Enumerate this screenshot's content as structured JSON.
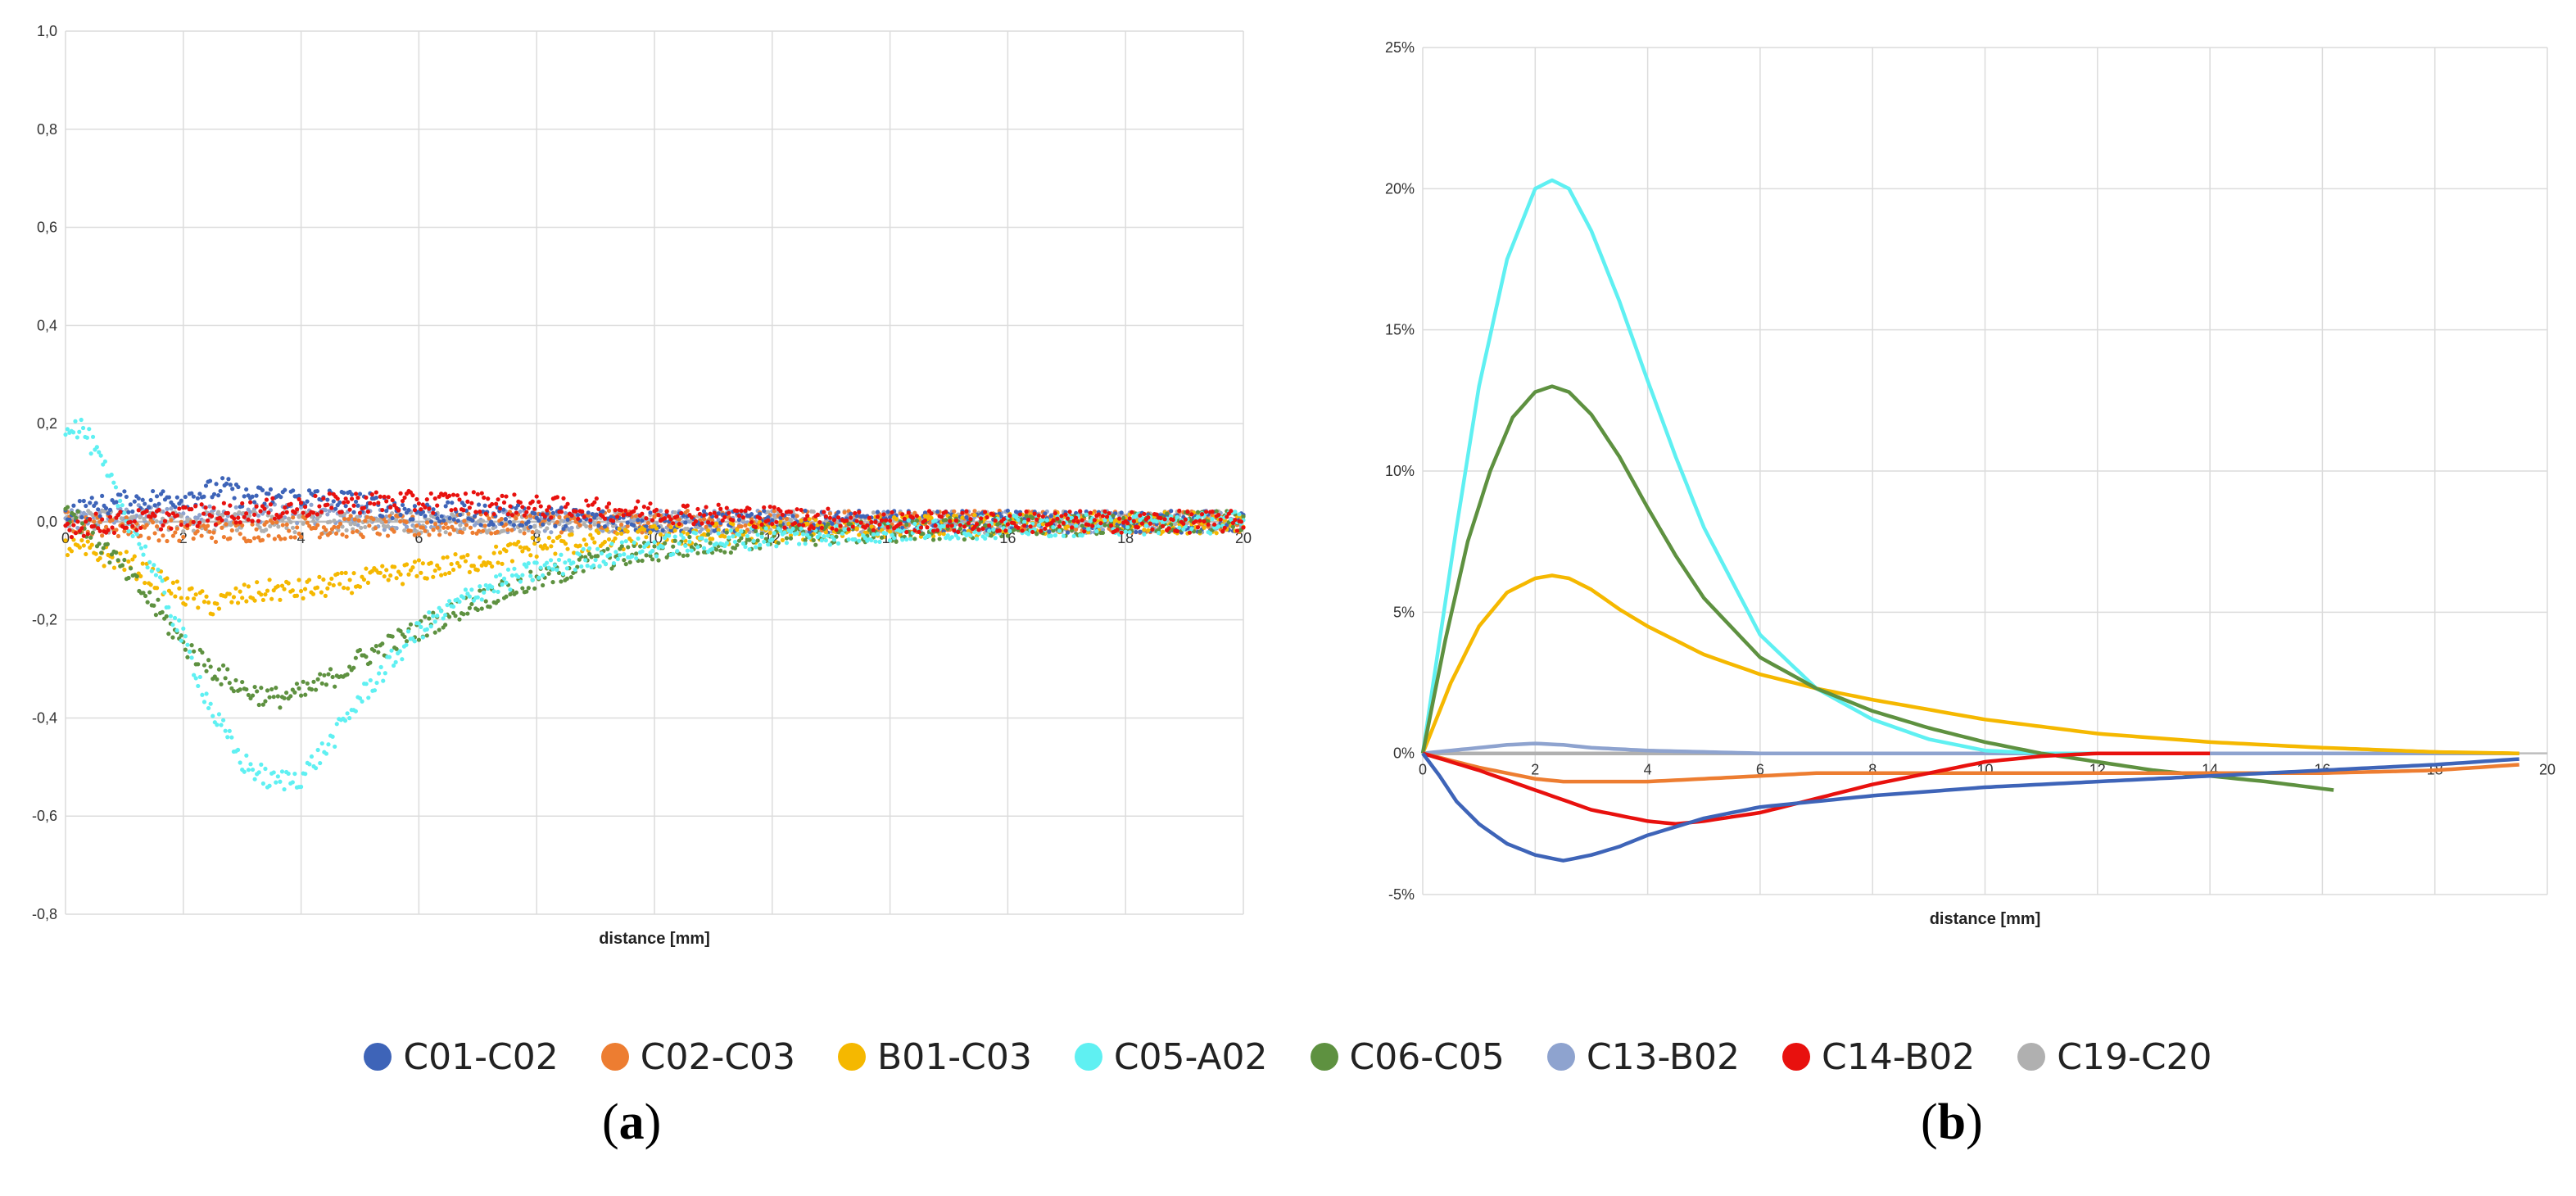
{
  "legend": [
    {
      "name": "C01-C02",
      "color": "#3e64b8"
    },
    {
      "name": "C02-C03",
      "color": "#ed7d31"
    },
    {
      "name": "B01-C03",
      "color": "#f5b800"
    },
    {
      "name": "C05-A02",
      "color": "#5ff0f2"
    },
    {
      "name": "C06-C05",
      "color": "#5e9140"
    },
    {
      "name": "C13-B02",
      "color": "#8ea3cf"
    },
    {
      "name": "C14-B02",
      "color": "#e8110e"
    },
    {
      "name": "C19-C20",
      "color": "#b0b0b0"
    }
  ],
  "panels": {
    "a": {
      "open": "(",
      "letter": "a",
      "close": ")"
    },
    "b": {
      "open": "(",
      "letter": "b",
      "close": ")"
    }
  },
  "chart_data": [
    {
      "id": "a",
      "type": "scatter",
      "xlabel": "distance [mm]",
      "ylabel": "",
      "xlim": [
        0,
        20
      ],
      "ylim": [
        -0.8,
        1.0
      ],
      "x_ticks": [
        0,
        2,
        4,
        6,
        8,
        10,
        12,
        14,
        16,
        18,
        20
      ],
      "x_tick_labels": [
        "0",
        "2",
        "4",
        "6",
        "8",
        "10",
        "12",
        "14",
        "16",
        "18",
        "20"
      ],
      "y_ticks": [
        1.0,
        0.8,
        0.6,
        0.4,
        0.2,
        0.0,
        -0.2,
        -0.4,
        -0.6,
        -0.8
      ],
      "y_tick_labels": [
        "1,0",
        "0,8",
        "0,6",
        "0,4",
        "0,2",
        "0,0",
        "-0,2",
        "-0,4",
        "-0,6",
        "-0,8"
      ],
      "grid": true,
      "series": [
        {
          "name": "C13-B02",
          "x": [
            0,
            1,
            2,
            3,
            4,
            5,
            6,
            8,
            10,
            14,
            20
          ],
          "y": [
            0.0,
            0.01,
            0.02,
            0.01,
            0.02,
            0.01,
            0.0,
            0.0,
            0.0,
            0.0,
            0.0
          ]
        },
        {
          "name": "C19-C20",
          "x": [
            0,
            2,
            4,
            6,
            8,
            10,
            14,
            20
          ],
          "y": [
            0.0,
            0.0,
            0.0,
            0.0,
            0.0,
            0.0,
            0.0,
            0.0
          ]
        },
        {
          "name": "C02-C03",
          "x": [
            0,
            1,
            2,
            3,
            4,
            6,
            8,
            10,
            14,
            20
          ],
          "y": [
            0.0,
            -0.01,
            -0.02,
            -0.02,
            -0.01,
            -0.01,
            0.0,
            0.0,
            0.0,
            0.0
          ]
        },
        {
          "name": "C01-C02",
          "x": [
            0,
            1,
            2,
            2.7,
            3,
            4,
            5,
            6,
            8,
            10,
            14,
            20
          ],
          "y": [
            0.02,
            0.04,
            0.05,
            0.07,
            0.05,
            0.05,
            0.04,
            0.02,
            0.01,
            0.0,
            0.0,
            0.0
          ]
        },
        {
          "name": "B01-C03",
          "x": [
            0,
            1,
            2,
            2.5,
            3,
            3.5,
            4,
            5,
            6,
            7,
            8,
            10,
            12,
            14,
            20
          ],
          "y": [
            -0.05,
            -0.08,
            -0.15,
            -0.17,
            -0.15,
            -0.14,
            -0.14,
            -0.12,
            -0.1,
            -0.08,
            -0.05,
            -0.03,
            -0.02,
            -0.01,
            0.0
          ]
        },
        {
          "name": "C06-C05",
          "x": [
            0,
            0.5,
            1,
            1.5,
            2,
            2.5,
            3,
            3.5,
            4,
            4.5,
            5,
            6,
            7,
            8,
            9,
            10,
            12,
            14,
            16,
            20
          ],
          "y": [
            0.03,
            -0.03,
            -0.1,
            -0.17,
            -0.25,
            -0.3,
            -0.34,
            -0.36,
            -0.35,
            -0.32,
            -0.28,
            -0.22,
            -0.16,
            -0.12,
            -0.08,
            -0.06,
            -0.03,
            -0.02,
            -0.01,
            0.0
          ]
        },
        {
          "name": "C05-A02",
          "x": [
            0,
            0.3,
            0.6,
            1,
            1.5,
            2,
            2.5,
            3,
            3.5,
            4,
            4.5,
            5,
            5.5,
            6,
            7,
            8,
            9,
            10,
            12,
            14,
            16,
            20
          ],
          "y": [
            0.2,
            0.19,
            0.12,
            0.02,
            -0.1,
            -0.24,
            -0.39,
            -0.49,
            -0.53,
            -0.52,
            -0.45,
            -0.36,
            -0.29,
            -0.22,
            -0.14,
            -0.1,
            -0.07,
            -0.05,
            -0.03,
            -0.02,
            -0.01,
            0.0
          ]
        },
        {
          "name": "C14-B02",
          "x": [
            0,
            1,
            2,
            3,
            4,
            5,
            6,
            7,
            8,
            10,
            12,
            14,
            20
          ],
          "y": [
            -0.01,
            0.0,
            0.01,
            0.02,
            0.03,
            0.04,
            0.04,
            0.04,
            0.03,
            0.02,
            0.01,
            0.0,
            0.0
          ]
        }
      ]
    },
    {
      "id": "b",
      "type": "line",
      "xlabel": "distance [mm]",
      "ylabel": "",
      "xlim": [
        0,
        20
      ],
      "ylim": [
        -5,
        25
      ],
      "x_ticks": [
        0,
        2,
        4,
        6,
        8,
        10,
        12,
        14,
        16,
        18,
        20
      ],
      "x_tick_labels": [
        "0",
        "2",
        "4",
        "6",
        "8",
        "10",
        "12",
        "14",
        "16",
        "18",
        "20"
      ],
      "y_ticks": [
        25,
        20,
        15,
        10,
        5,
        0,
        -5
      ],
      "y_tick_labels": [
        "25%",
        "20%",
        "15%",
        "10%",
        "5%",
        "0%",
        "-5%"
      ],
      "grid": true,
      "series": [
        {
          "name": "C19-C20",
          "x": [
            0,
            2,
            4,
            6,
            8,
            10,
            14,
            19.5
          ],
          "y": [
            0,
            0,
            0,
            0,
            0,
            0,
            0,
            0
          ]
        },
        {
          "name": "C13-B02",
          "x": [
            0,
            0.5,
            1,
            1.5,
            2,
            2.5,
            3,
            4,
            5,
            6,
            8,
            10,
            14,
            19.5
          ],
          "y": [
            0,
            0.1,
            0.2,
            0.3,
            0.35,
            0.3,
            0.2,
            0.1,
            0.05,
            0.0,
            0.0,
            0.0,
            0.0,
            0.0
          ]
        },
        {
          "name": "B01-C03",
          "x": [
            0,
            0.5,
            1,
            1.5,
            2,
            2.3,
            2.6,
            3,
            3.5,
            4,
            5,
            6,
            7,
            8,
            10,
            12,
            14,
            16,
            18,
            19.5
          ],
          "y": [
            0,
            2.5,
            4.5,
            5.7,
            6.2,
            6.3,
            6.2,
            5.8,
            5.1,
            4.5,
            3.5,
            2.8,
            2.3,
            1.9,
            1.2,
            0.7,
            0.4,
            0.2,
            0.05,
            0.0
          ]
        },
        {
          "name": "C05-A02",
          "x": [
            0,
            0.3,
            0.6,
            1,
            1.5,
            2,
            2.3,
            2.6,
            3,
            3.5,
            4,
            4.5,
            5,
            6,
            7,
            8,
            9,
            10,
            11,
            12
          ],
          "y": [
            0,
            4,
            8,
            13,
            17.5,
            20,
            20.3,
            20,
            18.5,
            16,
            13.2,
            10.5,
            8,
            4.2,
            2.3,
            1.2,
            0.5,
            0.1,
            0.0,
            0.0
          ]
        },
        {
          "name": "C06-C05",
          "x": [
            0,
            0.4,
            0.8,
            1.2,
            1.6,
            2,
            2.3,
            2.6,
            3,
            3.5,
            4,
            4.5,
            5,
            6,
            7,
            8,
            9,
            10,
            11,
            12,
            13,
            14,
            15,
            16.2
          ],
          "y": [
            0,
            4,
            7.5,
            10,
            11.9,
            12.8,
            13.0,
            12.8,
            12.0,
            10.5,
            8.7,
            7.0,
            5.5,
            3.4,
            2.3,
            1.5,
            0.9,
            0.4,
            0.0,
            -0.3,
            -0.6,
            -0.8,
            -1.0,
            -1.3
          ]
        },
        {
          "name": "C02-C03",
          "x": [
            0,
            1,
            2,
            2.5,
            3,
            4,
            5,
            6,
            7,
            8,
            10,
            12,
            14,
            16,
            18,
            19.5
          ],
          "y": [
            0,
            -0.5,
            -0.9,
            -1.0,
            -1.0,
            -1.0,
            -0.9,
            -0.8,
            -0.7,
            -0.7,
            -0.7,
            -0.7,
            -0.7,
            -0.7,
            -0.6,
            -0.4
          ]
        },
        {
          "name": "C14-B02",
          "x": [
            0,
            1,
            2,
            3,
            4,
            4.5,
            5,
            6,
            7,
            8,
            9,
            10,
            11,
            12,
            13,
            14
          ],
          "y": [
            0,
            -0.6,
            -1.3,
            -2.0,
            -2.4,
            -2.5,
            -2.4,
            -2.1,
            -1.6,
            -1.1,
            -0.7,
            -0.3,
            -0.1,
            0.0,
            0.0,
            0.0
          ]
        },
        {
          "name": "C01-C02",
          "x": [
            0,
            0.3,
            0.6,
            1,
            1.5,
            2,
            2.5,
            3,
            3.5,
            4,
            5,
            6,
            8,
            10,
            12,
            14,
            16,
            18,
            19.5
          ],
          "y": [
            0,
            -0.8,
            -1.7,
            -2.5,
            -3.2,
            -3.6,
            -3.8,
            -3.6,
            -3.3,
            -2.9,
            -2.3,
            -1.9,
            -1.5,
            -1.2,
            -1.0,
            -0.8,
            -0.6,
            -0.4,
            -0.2
          ]
        }
      ]
    }
  ]
}
